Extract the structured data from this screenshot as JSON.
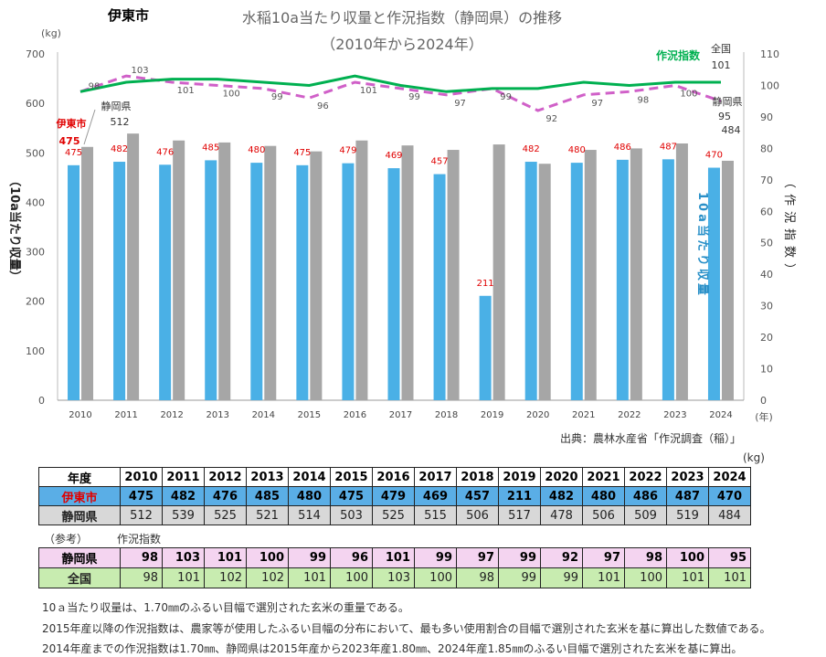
{
  "header": {
    "city": "伊東市",
    "title": "水稲10a当たり収量と作況指数（静岡県）の推移",
    "subtitle": "（2010年から2024年）"
  },
  "chart_data": {
    "type": "bar+line",
    "categories": [
      "2010",
      "2011",
      "2012",
      "2013",
      "2014",
      "2015",
      "2016",
      "2017",
      "2018",
      "2019",
      "2020",
      "2021",
      "2022",
      "2023",
      "2024"
    ],
    "bars": [
      {
        "name": "伊東市",
        "values": [
          475,
          482,
          476,
          485,
          480,
          475,
          479,
          469,
          457,
          211,
          482,
          480,
          486,
          487,
          470
        ],
        "color": "#4ab0e6",
        "label_color": "#e00000"
      },
      {
        "name": "静岡県",
        "values": [
          512,
          539,
          525,
          521,
          514,
          503,
          525,
          515,
          506,
          517,
          478,
          506,
          509,
          519,
          484
        ],
        "color": "#a6a6a6"
      }
    ],
    "lines": [
      {
        "name": "作況指数 静岡県",
        "values": [
          98,
          103,
          101,
          100,
          99,
          96,
          101,
          99,
          97,
          99,
          92,
          97,
          98,
          100,
          95
        ],
        "color": "#d060c8",
        "dashed": true
      },
      {
        "name": "作況指数 全国",
        "values": [
          98,
          101,
          102,
          102,
          101,
          100,
          103,
          100,
          98,
          99,
          99,
          101,
          100,
          101,
          101
        ],
        "color": "#00b050",
        "dashed": false
      }
    ],
    "y_left": {
      "label": "（10a当たり収量）",
      "unit": "(kg)",
      "range": [
        0,
        700
      ],
      "ticks": [
        0,
        100,
        200,
        300,
        400,
        500,
        600,
        700
      ]
    },
    "y_right": {
      "label": "（作況指数）",
      "range": [
        0,
        110
      ],
      "ticks": [
        0,
        10,
        20,
        30,
        40,
        50,
        60,
        70,
        80,
        90,
        100,
        110
      ]
    },
    "x_unit": "(年)",
    "annotations": {
      "city_label": "伊東市",
      "pref_label": "静岡県",
      "index_label": "作況指数",
      "national_label": "全国",
      "pref_index_label": "静岡県",
      "bar_axis_label": "10a当たり収量",
      "first_pref_value": "512",
      "first_city_value": "475",
      "last_national": "101",
      "last_pref_index": "95",
      "last_pref_value": "484"
    }
  },
  "source": "出典：農林水産省「作況調査（稲）」",
  "table": {
    "unit": "(kg)",
    "year_header": "年度",
    "city_header": "伊東市",
    "pref_header": "静岡県",
    "ref_label": "（参考）",
    "index_label": "作況指数",
    "idx_pref_header": "静岡県",
    "idx_nat_header": "全国"
  },
  "notes": [
    "10ａ当たり収量は、1.70㎜のふるい目幅で選別された玄米の重量である。",
    "2015年産以降の作況指数は、農家等が使用したふるい目幅の分布において、最も多い使用割合の目幅で選別された玄米を基に算出した数値である。",
    "2014年産までの作況指数は1.70㎜、静岡県は2015年産から2023年産1.80㎜、2024年産1.85㎜のふるい目幅で選別された玄米を基に算出。"
  ]
}
